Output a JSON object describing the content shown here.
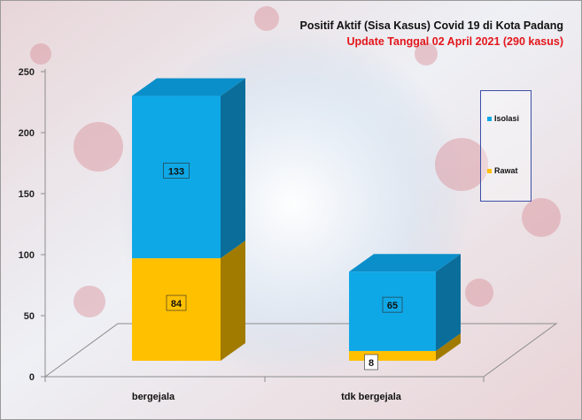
{
  "colors": {
    "isolasi_front": "#0fa8e6",
    "isolasi_side": "#0b6e9a",
    "isolasi_top": "#0b8fca",
    "rawat_front": "#ffc000",
    "rawat_side": "#a17a00",
    "rawat_top": "#d9a300",
    "title": "#111111",
    "subtitle": "#e3161b"
  },
  "chart_data": {
    "type": "bar",
    "stacked": true,
    "three_d": true,
    "title": "Positif Aktif  (Sisa Kasus) Covid 19 di Kota Padang",
    "subtitle": "Update Tanggal 02 April 2021  (290 kasus)",
    "categories": [
      "bergejala",
      "tdk bergejala"
    ],
    "series": [
      {
        "name": "Rawat",
        "values": [
          84,
          8
        ]
      },
      {
        "name": "Isolasi",
        "values": [
          133,
          65
        ]
      }
    ],
    "ylim": [
      0,
      250
    ],
    "yticks": [
      "0",
      "50",
      "100",
      "150",
      "200",
      "250"
    ],
    "legend_position": "right",
    "grid": false
  }
}
